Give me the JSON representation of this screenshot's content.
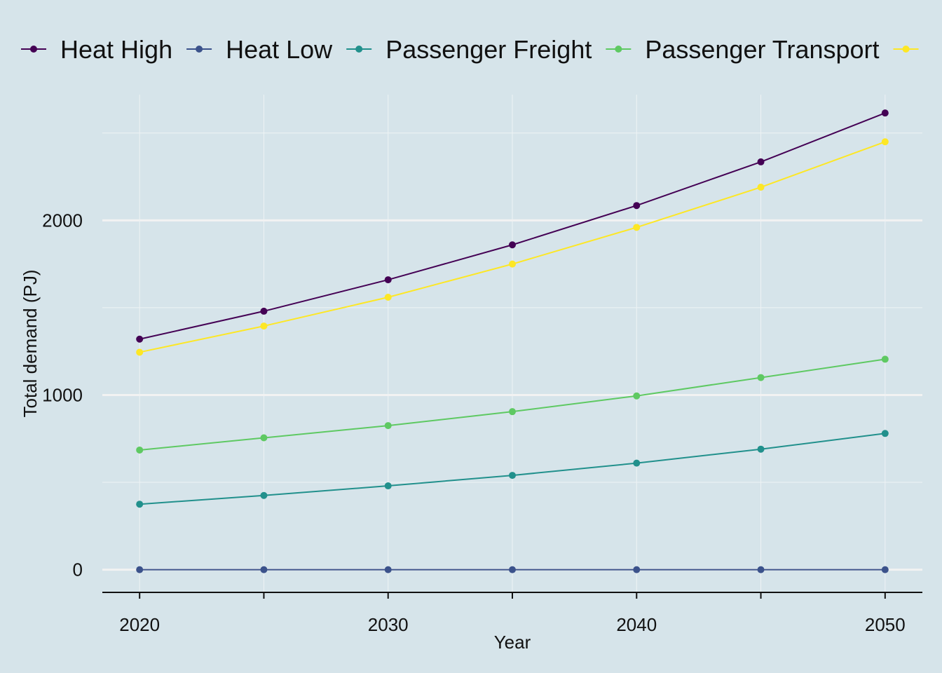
{
  "chart_data": {
    "type": "line",
    "title": "",
    "xlabel": "Year",
    "ylabel": "Total demand (PJ)",
    "x": [
      2020,
      2025,
      2030,
      2035,
      2040,
      2045,
      2050
    ],
    "x_ticks": [
      "2020",
      "2030",
      "2040",
      "2050"
    ],
    "y_ticks": [
      "0",
      "1000",
      "2000"
    ],
    "xlim": [
      2018.5,
      2051.5
    ],
    "ylim": [
      -130,
      2720
    ],
    "grid": true,
    "legend_position": "top",
    "series": [
      {
        "name": "Heat High",
        "color": "#440154",
        "values": [
          1320,
          1480,
          1660,
          1860,
          2085,
          2335,
          2615
        ]
      },
      {
        "name": "Heat Low",
        "color": "#3b528b",
        "values": [
          0,
          0,
          0,
          0,
          0,
          0,
          0
        ]
      },
      {
        "name": "Passenger Freight",
        "color": "#21908c",
        "values": [
          375,
          425,
          480,
          540,
          610,
          690,
          780
        ]
      },
      {
        "name": "Passenger Transport",
        "color": "#5ec962",
        "values": [
          685,
          755,
          825,
          905,
          995,
          1100,
          1205
        ]
      },
      {
        "name": "",
        "color": "#fde725",
        "values": [
          1245,
          1395,
          1560,
          1750,
          1960,
          2190,
          2450
        ]
      }
    ]
  }
}
